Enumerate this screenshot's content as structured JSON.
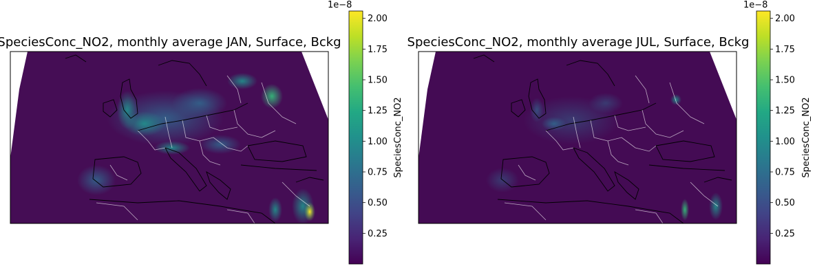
{
  "figure": {
    "panels": [
      {
        "title": "SpeciesConc_NO2, monthly average JAN, Surface, Bckg",
        "colorbar": {
          "label": "SpeciesConc_NO2",
          "offset_text": "1e−8",
          "ticks": [
            "0.25",
            "0.50",
            "0.75",
            "1.00",
            "1.25",
            "1.50",
            "1.75",
            "2.00"
          ],
          "tick_values": [
            0.25,
            0.5,
            0.75,
            1.0,
            1.25,
            1.5,
            1.75,
            2.0
          ],
          "vmin": 0.0,
          "vmax": 2.06
        }
      },
      {
        "title": "SpeciesConc_NO2, monthly average JUL, Surface, Bckg",
        "colorbar": {
          "label": "SpeciesConc_NO2",
          "offset_text": "1e−8",
          "ticks": [
            "0.25",
            "0.50",
            "0.75",
            "1.00",
            "1.25",
            "1.50",
            "1.75",
            "2.00"
          ],
          "tick_values": [
            0.25,
            0.5,
            0.75,
            1.0,
            1.25,
            1.5,
            1.75,
            2.0
          ],
          "vmin": 0.0,
          "vmax": 2.06
        }
      }
    ],
    "colormap": "viridis",
    "colors": {
      "low": "#440154",
      "mid": "#21918c",
      "high": "#fde725",
      "border_lines": "#ffffff",
      "coastlines": "#000000"
    }
  }
}
